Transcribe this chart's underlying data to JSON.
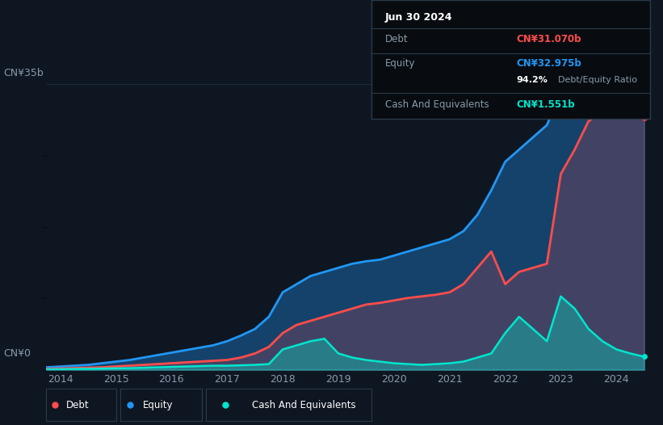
{
  "bg_color": "#0e1621",
  "plot_bg_color": "#0e1621",
  "grid_color": "#1c2b3a",
  "ylabel_text": "CN¥35b",
  "ylabel0_text": "CN¥0",
  "x_ticks": [
    2014,
    2015,
    2016,
    2017,
    2018,
    2019,
    2020,
    2021,
    2022,
    2023,
    2024
  ],
  "debt_color": "#ff4c4c",
  "equity_color": "#2196f3",
  "cash_color": "#00e5cc",
  "tooltip_title": "Jun 30 2024",
  "tooltip_debt_label": "Debt",
  "tooltip_debt_value": "CN¥31.070b",
  "tooltip_equity_label": "Equity",
  "tooltip_equity_value": "CN¥32.975b",
  "tooltip_ratio_value": "94.2%",
  "tooltip_ratio_label": "Debt/Equity Ratio",
  "tooltip_cash_label": "Cash And Equivalents",
  "tooltip_cash_value": "CN¥1.551b",
  "legend_debt": "Debt",
  "legend_equity": "Equity",
  "legend_cash": "Cash And Equivalents",
  "years": [
    2013.75,
    2014.0,
    2014.25,
    2014.5,
    2014.75,
    2015.0,
    2015.25,
    2015.5,
    2015.75,
    2016.0,
    2016.25,
    2016.5,
    2016.75,
    2017.0,
    2017.25,
    2017.5,
    2017.75,
    2018.0,
    2018.25,
    2018.5,
    2018.75,
    2019.0,
    2019.25,
    2019.5,
    2019.75,
    2020.0,
    2020.25,
    2020.5,
    2020.75,
    2021.0,
    2021.25,
    2021.5,
    2021.75,
    2022.0,
    2022.25,
    2022.5,
    2022.75,
    2023.0,
    2023.25,
    2023.5,
    2023.75,
    2024.0,
    2024.25,
    2024.5
  ],
  "equity": [
    0.3,
    0.4,
    0.5,
    0.6,
    0.8,
    1.0,
    1.2,
    1.5,
    1.8,
    2.1,
    2.4,
    2.7,
    3.0,
    3.5,
    4.2,
    5.0,
    6.5,
    9.5,
    10.5,
    11.5,
    12.0,
    12.5,
    13.0,
    13.3,
    13.5,
    14.0,
    14.5,
    15.0,
    15.5,
    16.0,
    17.0,
    19.0,
    22.0,
    25.5,
    27.0,
    28.5,
    30.0,
    34.0,
    33.5,
    33.0,
    33.2,
    33.0,
    33.2,
    33.0
  ],
  "debt": [
    0.1,
    0.15,
    0.2,
    0.25,
    0.3,
    0.4,
    0.5,
    0.6,
    0.7,
    0.8,
    0.9,
    1.0,
    1.1,
    1.2,
    1.5,
    2.0,
    2.8,
    4.5,
    5.5,
    6.0,
    6.5,
    7.0,
    7.5,
    8.0,
    8.2,
    8.5,
    8.8,
    9.0,
    9.2,
    9.5,
    10.5,
    12.5,
    14.5,
    10.5,
    12.0,
    12.5,
    13.0,
    24.0,
    27.0,
    30.5,
    31.5,
    31.0,
    31.2,
    31.0
  ],
  "cash": [
    0.05,
    0.07,
    0.1,
    0.12,
    0.15,
    0.18,
    0.2,
    0.25,
    0.3,
    0.35,
    0.4,
    0.45,
    0.5,
    0.5,
    0.55,
    0.6,
    0.7,
    2.5,
    3.0,
    3.5,
    3.8,
    2.0,
    1.5,
    1.2,
    1.0,
    0.8,
    0.7,
    0.6,
    0.7,
    0.8,
    1.0,
    1.5,
    2.0,
    4.5,
    6.5,
    5.0,
    3.5,
    9.0,
    7.5,
    5.0,
    3.5,
    2.5,
    2.0,
    1.6
  ],
  "ylim": [
    0,
    37
  ],
  "xlim": [
    2013.75,
    2024.6
  ]
}
